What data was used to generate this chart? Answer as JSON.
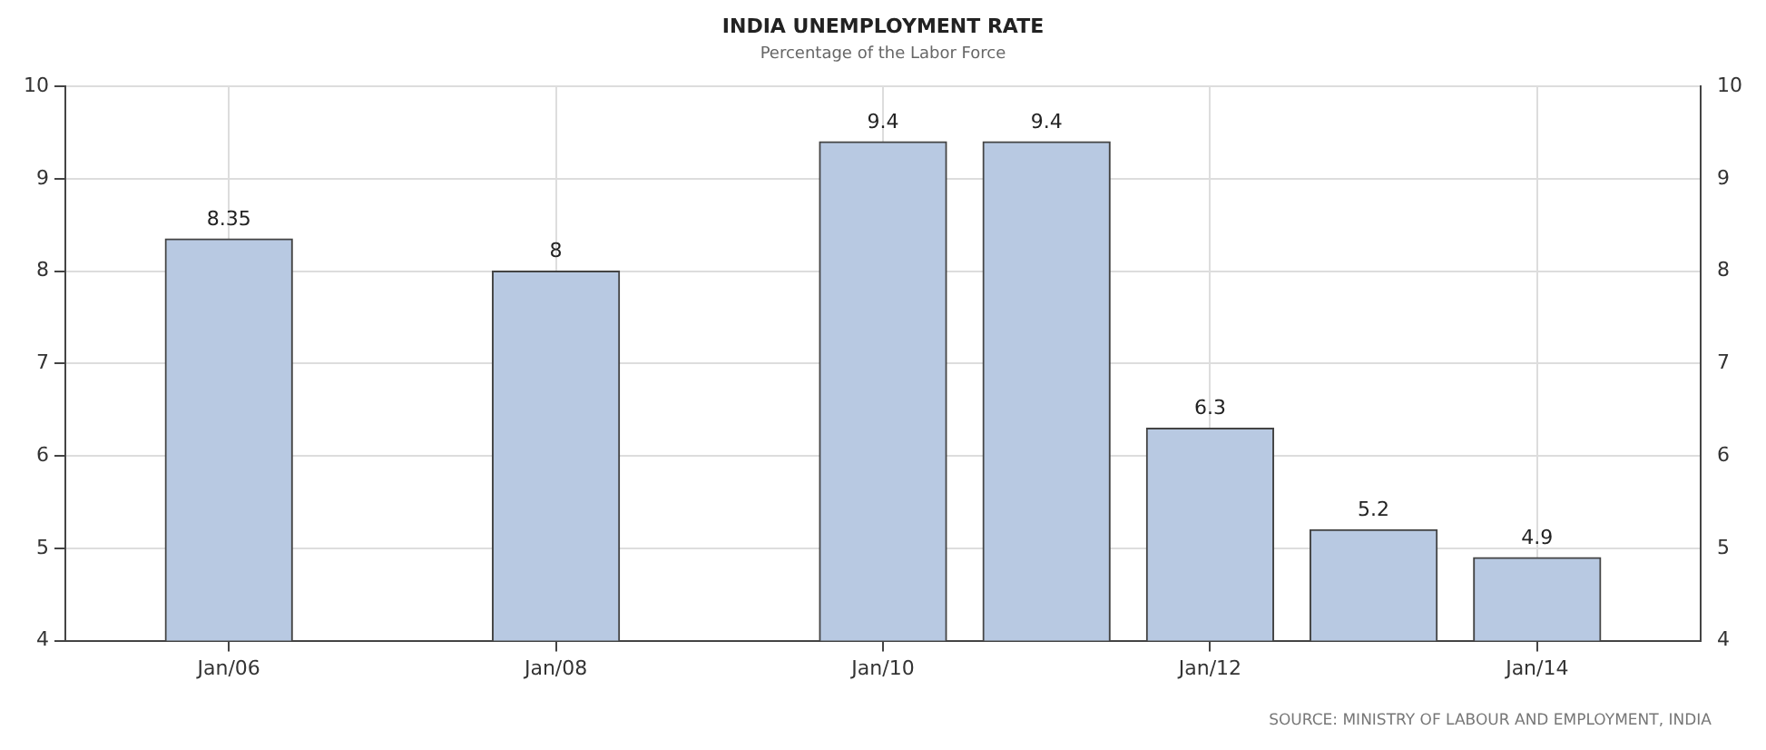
{
  "chart_data": {
    "type": "bar",
    "title": "INDIA UNEMPLOYMENT RATE",
    "subtitle": "Percentage of the Labor Force",
    "x": [
      "2006-01",
      "2008-01",
      "2010-01",
      "2011-01",
      "2012-01",
      "2013-01",
      "2014-01"
    ],
    "values": [
      8.35,
      8,
      9.4,
      9.4,
      6.3,
      5.2,
      4.9
    ],
    "color": "#b8c9e2",
    "data_labels": true,
    "xlim": [
      "2005-01",
      "2015-01"
    ],
    "xticks": [
      {
        "value": "2006-01",
        "label": "Jan/06"
      },
      {
        "value": "2008-01",
        "label": "Jan/08"
      },
      {
        "value": "2010-01",
        "label": "Jan/10"
      },
      {
        "value": "2012-01",
        "label": "Jan/12"
      },
      {
        "value": "2014-01",
        "label": "Jan/14"
      }
    ],
    "ylim": [
      4,
      10
    ],
    "yticks": [
      4,
      5,
      6,
      7,
      8,
      9,
      10
    ],
    "y2lim": [
      4,
      10
    ],
    "y2ticks": [
      4,
      5,
      6,
      7,
      8,
      9,
      10
    ],
    "grid": true,
    "legend": false,
    "annotations": [
      "SOURCE: MINISTRY OF LABOUR AND EMPLOYMENT, INDIA"
    ]
  }
}
